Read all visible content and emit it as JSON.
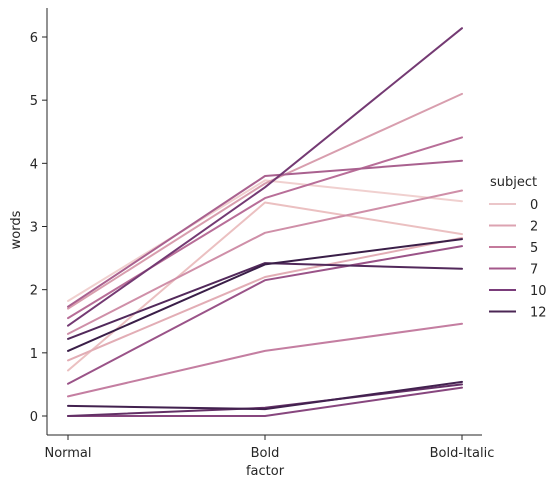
{
  "chart_data": {
    "type": "line",
    "xlabel": "factor",
    "ylabel": "words",
    "categories": [
      "Normal",
      "Bold",
      "Bold-Italic"
    ],
    "ylim": [
      -0.32,
      6.46
    ],
    "yticks": [
      0,
      1,
      2,
      3,
      4,
      5,
      6
    ],
    "grid": false,
    "legend": {
      "title": "subject",
      "placement": "right",
      "entries": [
        {
          "label": "0",
          "color": "#ebc6c9"
        },
        {
          "label": "2",
          "color": "#dca3b1"
        },
        {
          "label": "5",
          "color": "#c47a9c"
        },
        {
          "label": "7",
          "color": "#a4588b"
        },
        {
          "label": "10",
          "color": "#7a3c7a"
        },
        {
          "label": "12",
          "color": "#4b2654"
        }
      ]
    },
    "series": [
      {
        "color": "#f0d0cf",
        "values": [
          1.82,
          3.73,
          3.4
        ]
      },
      {
        "color": "#ebc0c1",
        "values": [
          0.72,
          3.38,
          2.88
        ]
      },
      {
        "color": "#e2adb5",
        "values": [
          0.88,
          2.2,
          2.82
        ]
      },
      {
        "color": "#d89eae",
        "values": [
          1.7,
          3.68,
          5.1
        ]
      },
      {
        "color": "#cf8fa8",
        "values": [
          1.3,
          2.9,
          3.57
        ]
      },
      {
        "color": "#c47ea1",
        "values": [
          0.31,
          1.03,
          1.46
        ]
      },
      {
        "color": "#b86e98",
        "values": [
          1.55,
          3.45,
          4.41
        ]
      },
      {
        "color": "#a9618f",
        "values": [
          1.73,
          3.8,
          4.04
        ]
      },
      {
        "color": "#9a5388",
        "values": [
          0.51,
          2.15,
          2.69
        ]
      },
      {
        "color": "#87467e",
        "values": [
          0.0,
          0.0,
          0.45
        ]
      },
      {
        "color": "#743a73",
        "values": [
          1.43,
          3.62,
          6.14
        ]
      },
      {
        "color": "#633066",
        "values": [
          0.0,
          0.13,
          0.5
        ]
      },
      {
        "color": "#52295b",
        "values": [
          1.22,
          2.42,
          2.33
        ]
      },
      {
        "color": "#42214f",
        "values": [
          0.16,
          0.11,
          0.54
        ]
      },
      {
        "color": "#3a1e48",
        "values": [
          1.03,
          2.4,
          2.8
        ]
      }
    ]
  }
}
